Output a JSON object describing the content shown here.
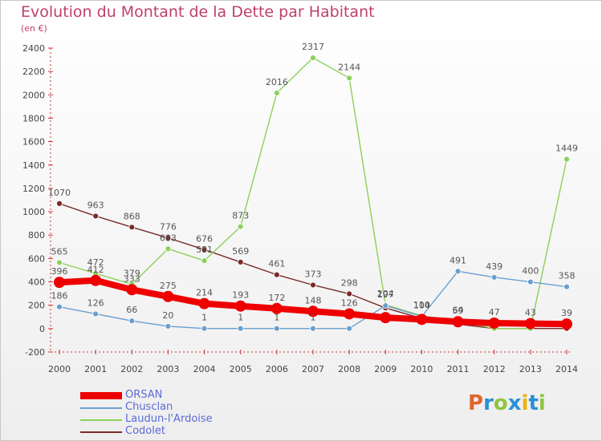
{
  "title": "Evolution du Montant de la Dette par Habitant",
  "subtitle": "(en €)",
  "logo": {
    "letters": [
      {
        "ch": "P",
        "color": "#e0662a"
      },
      {
        "ch": "r",
        "color": "#2c8fd6"
      },
      {
        "ch": "o",
        "color": "#8cc63f"
      },
      {
        "ch": "x",
        "color": "#2c8fd6"
      },
      {
        "ch": "i",
        "color": "#f0b400"
      },
      {
        "ch": "t",
        "color": "#2c8fd6"
      },
      {
        "ch": "i",
        "color": "#8cc63f"
      }
    ]
  },
  "chart_data": {
    "type": "line",
    "title": "Evolution du Montant de la Dette par Habitant",
    "subtitle": "(en €)",
    "x": [
      "2000",
      "2001",
      "2002",
      "2003",
      "2004",
      "2005",
      "2006",
      "2007",
      "2008",
      "2009",
      "2010",
      "2011",
      "2012",
      "2013",
      "2014"
    ],
    "ylim": [
      -200,
      2400
    ],
    "yticks": [
      -200,
      0,
      200,
      400,
      600,
      800,
      1000,
      1200,
      1400,
      1600,
      1800,
      2000,
      2200,
      2400
    ],
    "grid": false,
    "legend_position": "bottom-left",
    "series": [
      {
        "name": "Codolet",
        "color": "#7a2a2a",
        "values": [
          1070,
          963,
          868,
          776,
          676,
          569,
          461,
          373,
          298,
          177,
          87,
          38,
          1,
          1,
          1
        ],
        "labels": [
          "1070",
          "963",
          "868",
          "776",
          "676",
          "569",
          "461",
          "373",
          "298",
          "",
          "",
          "",
          "",
          "",
          ""
        ]
      },
      {
        "name": "Laudun-l'Ardoise",
        "color": "#8cd05a",
        "values": [
          565,
          472,
          379,
          683,
          581,
          873,
          2016,
          2317,
          2144,
          204,
          110,
          64,
          1,
          1,
          1449
        ],
        "labels": [
          "565",
          "472",
          "379",
          "683",
          "581",
          "873",
          "2016",
          "2317",
          "2144",
          "204",
          "110",
          "64",
          "",
          "",
          "1449"
        ]
      },
      {
        "name": "Chusclan",
        "color": "#6a9fd0",
        "values": [
          186,
          126,
          66,
          20,
          1,
          1,
          1,
          1,
          1,
          197,
          104,
          491,
          439,
          400,
          358
        ],
        "labels": [
          "186",
          "126",
          "66",
          "20",
          "1",
          "1",
          "1",
          "1",
          "",
          "197",
          "104",
          "491",
          "439",
          "400",
          "358"
        ]
      },
      {
        "name": "ORSAN",
        "color": "#ee0000",
        "values": [
          396,
          412,
          333,
          275,
          214,
          193,
          172,
          148,
          126,
          94,
          79,
          59,
          47,
          43,
          39
        ],
        "labels": [
          "396",
          "412",
          "333",
          "275",
          "214",
          "193",
          "172",
          "148",
          "126",
          "",
          "",
          "59",
          "47",
          "43",
          "39"
        ]
      }
    ]
  },
  "legend": [
    {
      "label": "ORSAN",
      "color": "#ee0000",
      "thick": true
    },
    {
      "label": "Chusclan",
      "color": "#6a9fd0",
      "thick": false
    },
    {
      "label": "Laudun-l'Ardoise",
      "color": "#8cd05a",
      "thick": false
    },
    {
      "label": "Codolet",
      "color": "#7a2a2a",
      "thick": false
    }
  ]
}
